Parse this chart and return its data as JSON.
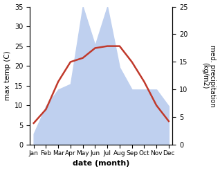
{
  "months": [
    "Jan",
    "Feb",
    "Mar",
    "Apr",
    "May",
    "Jun",
    "Jul",
    "Aug",
    "Sep",
    "Oct",
    "Nov",
    "Dec"
  ],
  "month_positions": [
    0,
    1,
    2,
    3,
    4,
    5,
    6,
    7,
    8,
    9,
    10,
    11
  ],
  "temperature": [
    5.5,
    9.0,
    16.0,
    21.0,
    22.0,
    24.5,
    25.0,
    25.0,
    21.0,
    16.0,
    10.0,
    6.0
  ],
  "precipitation": [
    2.0,
    7.0,
    10.0,
    11.0,
    25.0,
    18.0,
    25.0,
    14.0,
    10.0,
    10.0,
    10.0,
    7.0
  ],
  "temp_color": "#c0392b",
  "precip_fill_color": "#bfd0ef",
  "left_ylim": [
    0,
    35
  ],
  "right_ylim": [
    0,
    25
  ],
  "left_yticks": [
    0,
    5,
    10,
    15,
    20,
    25,
    30,
    35
  ],
  "right_yticks": [
    0,
    5,
    10,
    15,
    20,
    25
  ],
  "xlabel": "date (month)",
  "ylabel_left": "max temp (C)",
  "ylabel_right": "med. precipitation\n(kg/m2)",
  "background_color": "#ffffff",
  "fig_width": 3.18,
  "fig_height": 2.47,
  "dpi": 100
}
